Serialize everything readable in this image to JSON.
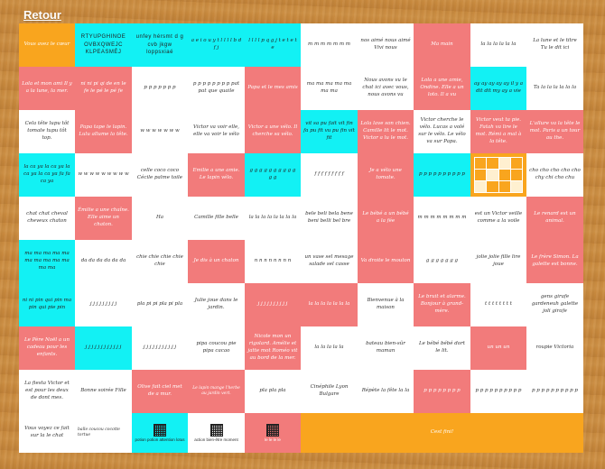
{
  "nav": {
    "back_label": "Retour"
  },
  "colors": {
    "white": "#ffffff",
    "red": "#f27b7b",
    "cyan": "#12f1f4",
    "orange": "#f9a51e",
    "board_wood": "#c98a3e"
  },
  "cells": [
    "Vous avez le cœur",
    "RTYUPGHINOE OVBXQWEJC KLPEASMÉJ",
    "unfey hérsmt d g cvb jkgw loppsxiaé",
    "a e i o u y t l l l l b d f j",
    "l l l l p q g j t e t e t e",
    "m m m m m m m",
    "nos aimé nous aimé Vivi nous",
    "Ma main",
    "la la la la la la",
    "La lune et le titre Tu le dit ici",
    "Lola et mon ami Il y a la lune, la mer.",
    "ni ni pi qi de en le fe le pé le pé fe",
    "p p p p p p p",
    "p p p p p p p p pat pat que quaile",
    "Papa et le mes amis",
    "ma ma ma ma ma ma ma",
    "Nous avons vu le chat ici avec vous, nous avons vu",
    "Lola a une amie, Ondine. Elle a un loto. Il a vu",
    "ay ay ay ay ay il y a dit dit my ay a vie",
    "Ta la la la la la la",
    "Cela tête lupu tôt tomate tupu tôt top.",
    "Papa tape le lapin. Lulu allume la tête.",
    "w w w w w w w",
    "Victor va voir elle, elle va voir le vélo",
    "Victor a une vélo. Il cherche sa vélo.",
    "vit sa pu fait vit fin fa pu fit vu pu fin vit fit",
    "Lola lave son chien. Camille lit le mot. Victor a lu le mot.",
    "Victor cherche le vélo. Lucas a volé sur le vélo. Le vélo va sur Papa.",
    "Victor veut ta pie. Fatah va lire le mot. Rémi a mal à la tête.",
    "L'allure va la tête le mot. Paris a un tour au the.",
    "la ca ya la ca ya la ca ya la ca ya fa fa ca ya",
    "w w w w w w w w w",
    "celle coco coco Cécile palme toile",
    "Emilie a une amie. Le lapin vélo.",
    "g g g g g g g g g g g g",
    "f f f f f f f f f",
    "Je a vélo une tomate.",
    "p p p p p p p p p p",
    "",
    "cho cho cho cho cho chy chi cho chu",
    "chat chat cheval cheveux chaton",
    "Émilie a une chaîne. Elle aime un chaton.",
    "Ha",
    "Camille fille belle",
    "la la la la la la la la",
    "bele beli bela bene beni belli bel bre",
    "Le bébé a un bébé a la fée",
    "m m m m m m m m",
    "est un Victor veille comme a la voile",
    "Le renard est un animal.",
    "ma ma ma ma ma ma ma ma ma ma ma ma",
    "da da da da da da",
    "chie chie chie chie chie",
    "Je dis à un chaton",
    "n n n n n n n n",
    "un vase sel mesage salade sel casse",
    "Va droite le mouton",
    "g g g g g g g",
    "jolie jolie fille lire joue",
    "Le frère Simon. La galette est bonne.",
    "ni ni pin qui pin ma pin qui pie pin",
    "j j j j j j j j j",
    "pla pi pi pla pi pla",
    "Julie joue dans le jardin.",
    "j j j j j j j j j j",
    "la la la la la la la",
    "Bienvenue à la maison",
    "Le bruit et alarme. Bonjour à grand-mère.",
    "t t t t t t t t",
    "gens girafe gardeneuh galette joli girafe",
    "Le Père Noël a un cadeau pour les enfants.",
    "j j j j j j j j j j j j",
    "j j j j j j j j j j j",
    "pipa coucou pie pipa cacao",
    "Nicole mon un rigolard. Amélie et jatte mot Roméo vit au bord de la mer.",
    "la la la la la",
    "bateau bien-sûr maman",
    "Le bébé bébé dort le lit.",
    "un un un",
    "roupie Victoria",
    "La fiesta Victor et est pour les deux de dont mes.",
    "Bonne soirée Fille",
    "Olive fait ciel met de a mur.",
    "Le lapin mange l'herbe au jardin vert.",
    "pla pla pla",
    "Cinéphile Lyon Bulgare",
    "Répète la fête la la",
    "p p p p p p p p",
    "p p p p p p p p p p",
    "Vous voyez ce fait sur la le chat",
    "balle coucou cocotte tortue",
    "potion potion attention lotus",
    "action bien-être moment",
    "le le le le",
    "Cest fini!"
  ]
}
